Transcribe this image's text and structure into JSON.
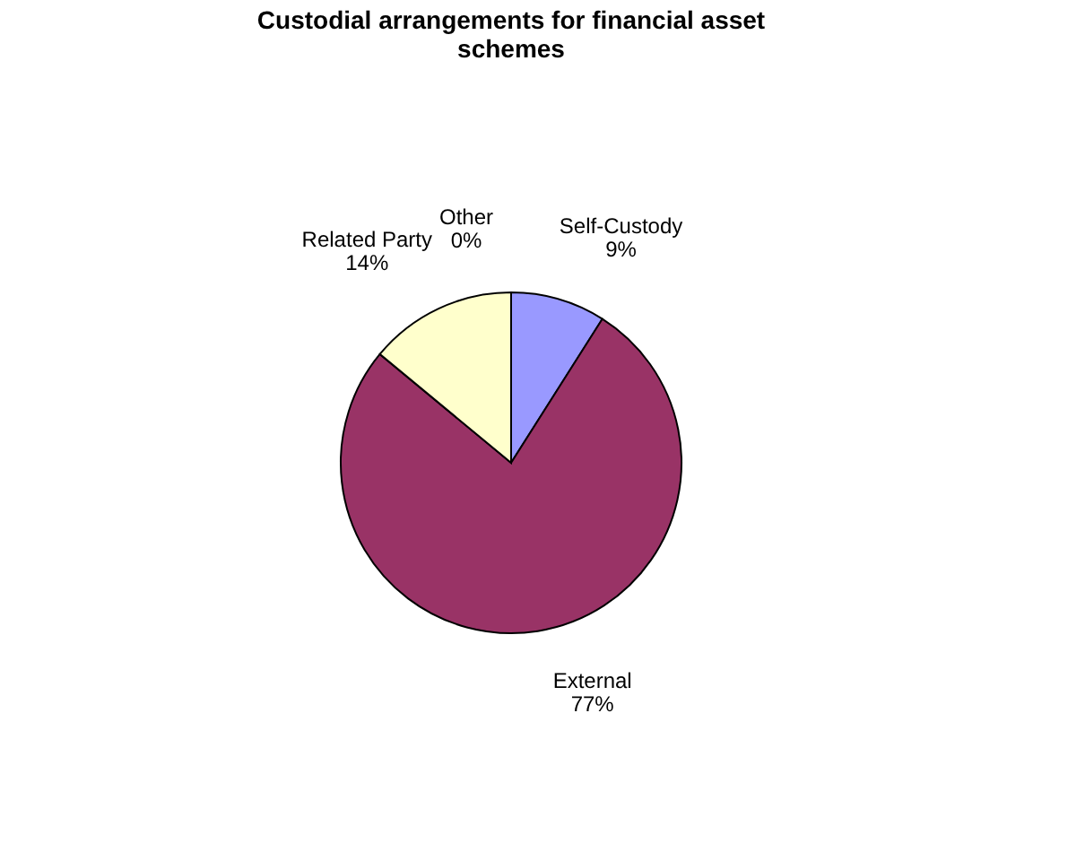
{
  "chart_data": {
    "type": "pie",
    "title": "Custodial arrangements for financial asset schemes",
    "categories": [
      "Self-Custody",
      "External",
      "Related Party",
      "Other"
    ],
    "values": [
      9,
      77,
      14,
      0
    ],
    "colors": [
      "#9999ff",
      "#993366",
      "#ffffcc",
      "#ffffff"
    ],
    "value_labels": [
      "9%",
      "77%",
      "14%",
      "0%"
    ],
    "legend": false
  }
}
